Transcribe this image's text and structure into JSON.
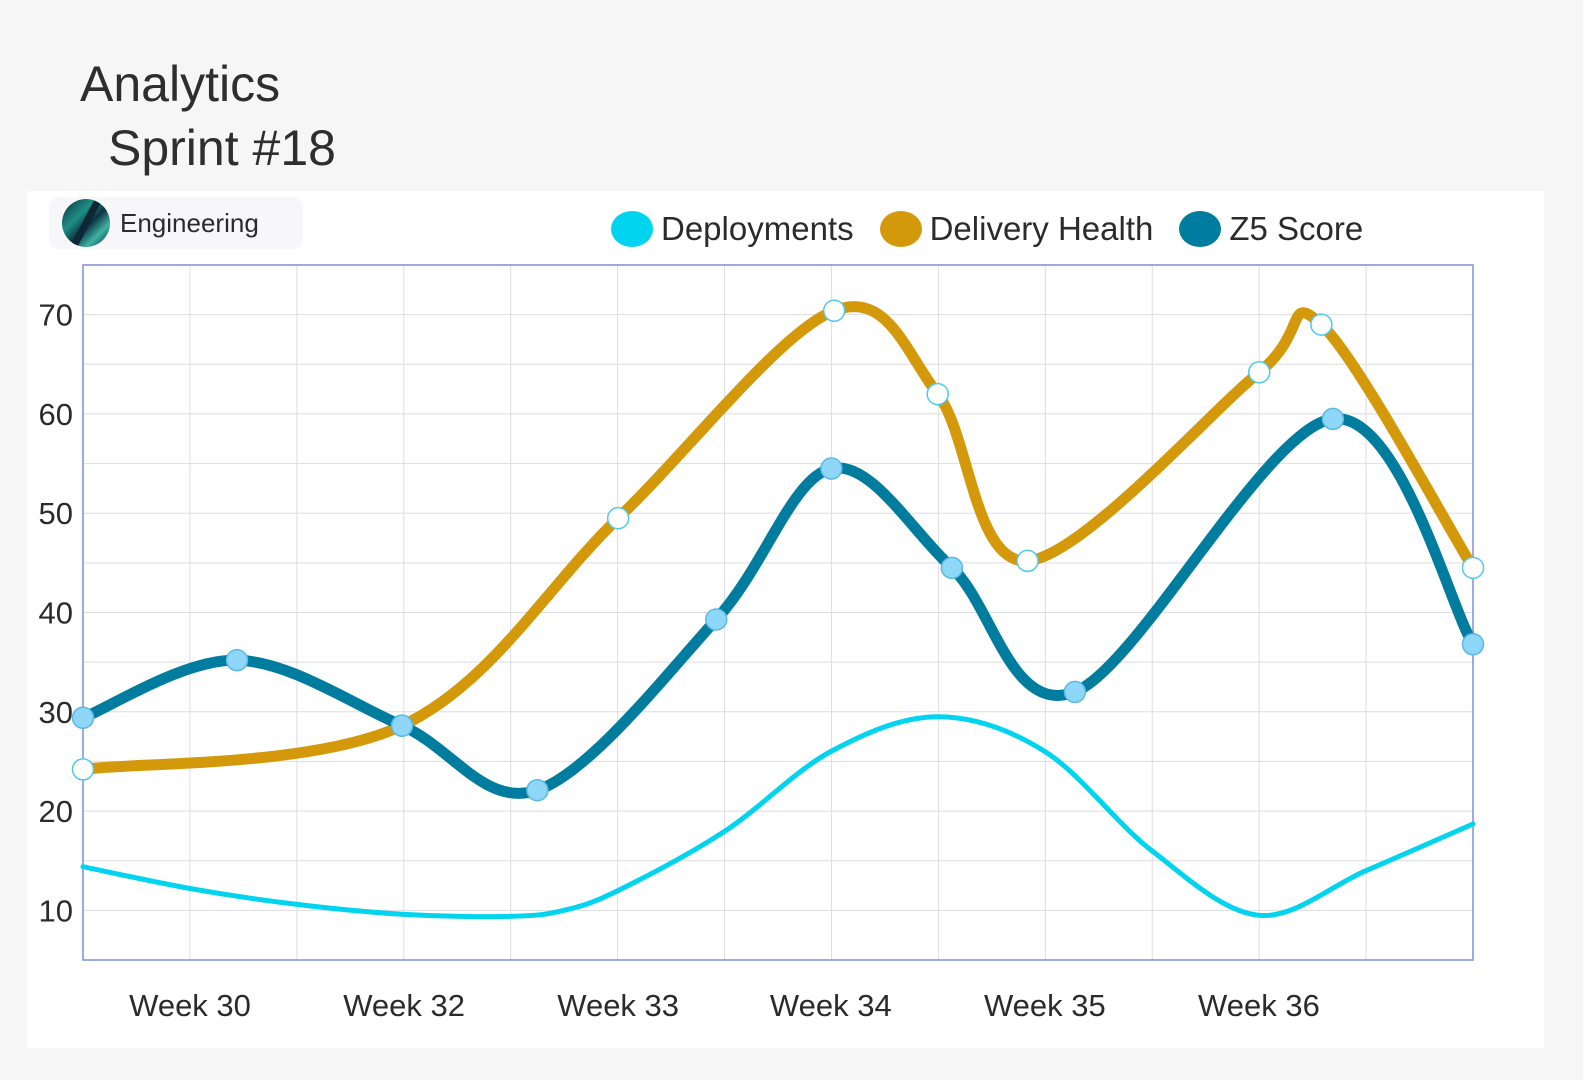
{
  "header": {
    "title": "Analytics",
    "subtitle": "Sprint #18"
  },
  "badge": {
    "label": "Engineering",
    "icon": "team-avatar-icon"
  },
  "chart_data": {
    "type": "line",
    "curve": "smooth",
    "categories": [
      "Week 30",
      "Week 32",
      "Week 33",
      "Week 34",
      "Week 35",
      "Week 36"
    ],
    "grid": true,
    "legend": "top-right",
    "ylim": [
      5,
      75
    ],
    "yticks": [
      10,
      20,
      30,
      40,
      50,
      60,
      70
    ],
    "xlim": [
      0,
      1
    ],
    "xtick_positions": [
      0.077,
      0.231,
      0.385,
      0.538,
      0.692,
      0.846
    ],
    "series": [
      {
        "name": "Deployments",
        "color": "#00d4ee",
        "markers": false,
        "points": [
          [
            0.0,
            14.4
          ],
          [
            0.077,
            12.2
          ],
          [
            0.154,
            10.6
          ],
          [
            0.231,
            9.6
          ],
          [
            0.308,
            9.4
          ],
          [
            0.346,
            10.0
          ],
          [
            0.385,
            12.0
          ],
          [
            0.462,
            18.0
          ],
          [
            0.538,
            26.0
          ],
          [
            0.615,
            29.5
          ],
          [
            0.692,
            26.0
          ],
          [
            0.769,
            16.0
          ],
          [
            0.846,
            9.5
          ],
          [
            0.923,
            14.0
          ],
          [
            1.0,
            18.7
          ]
        ]
      },
      {
        "name": "Delivery Health",
        "color": "#d4990a",
        "markers": true,
        "points": [
          [
            0.0,
            24.2
          ],
          [
            0.2295,
            28.6
          ],
          [
            0.385,
            49.5
          ],
          [
            0.5404,
            70.4
          ],
          [
            0.6149,
            62.0
          ],
          [
            0.6795,
            45.2
          ],
          [
            0.8462,
            64.2
          ],
          [
            0.8909,
            69.0
          ],
          [
            1.0,
            44.5
          ]
        ]
      },
      {
        "name": "Z5 Score",
        "color": "#007c9e",
        "markers": true,
        "points": [
          [
            0.0,
            29.4
          ],
          [
            0.1108,
            35.2
          ],
          [
            0.2295,
            28.6
          ],
          [
            0.3269,
            22.1
          ],
          [
            0.4556,
            39.3
          ],
          [
            0.5384,
            54.5
          ],
          [
            0.6251,
            44.5
          ],
          [
            0.7136,
            32.0
          ],
          [
            0.8992,
            59.5
          ],
          [
            1.0,
            36.8
          ]
        ]
      }
    ]
  }
}
